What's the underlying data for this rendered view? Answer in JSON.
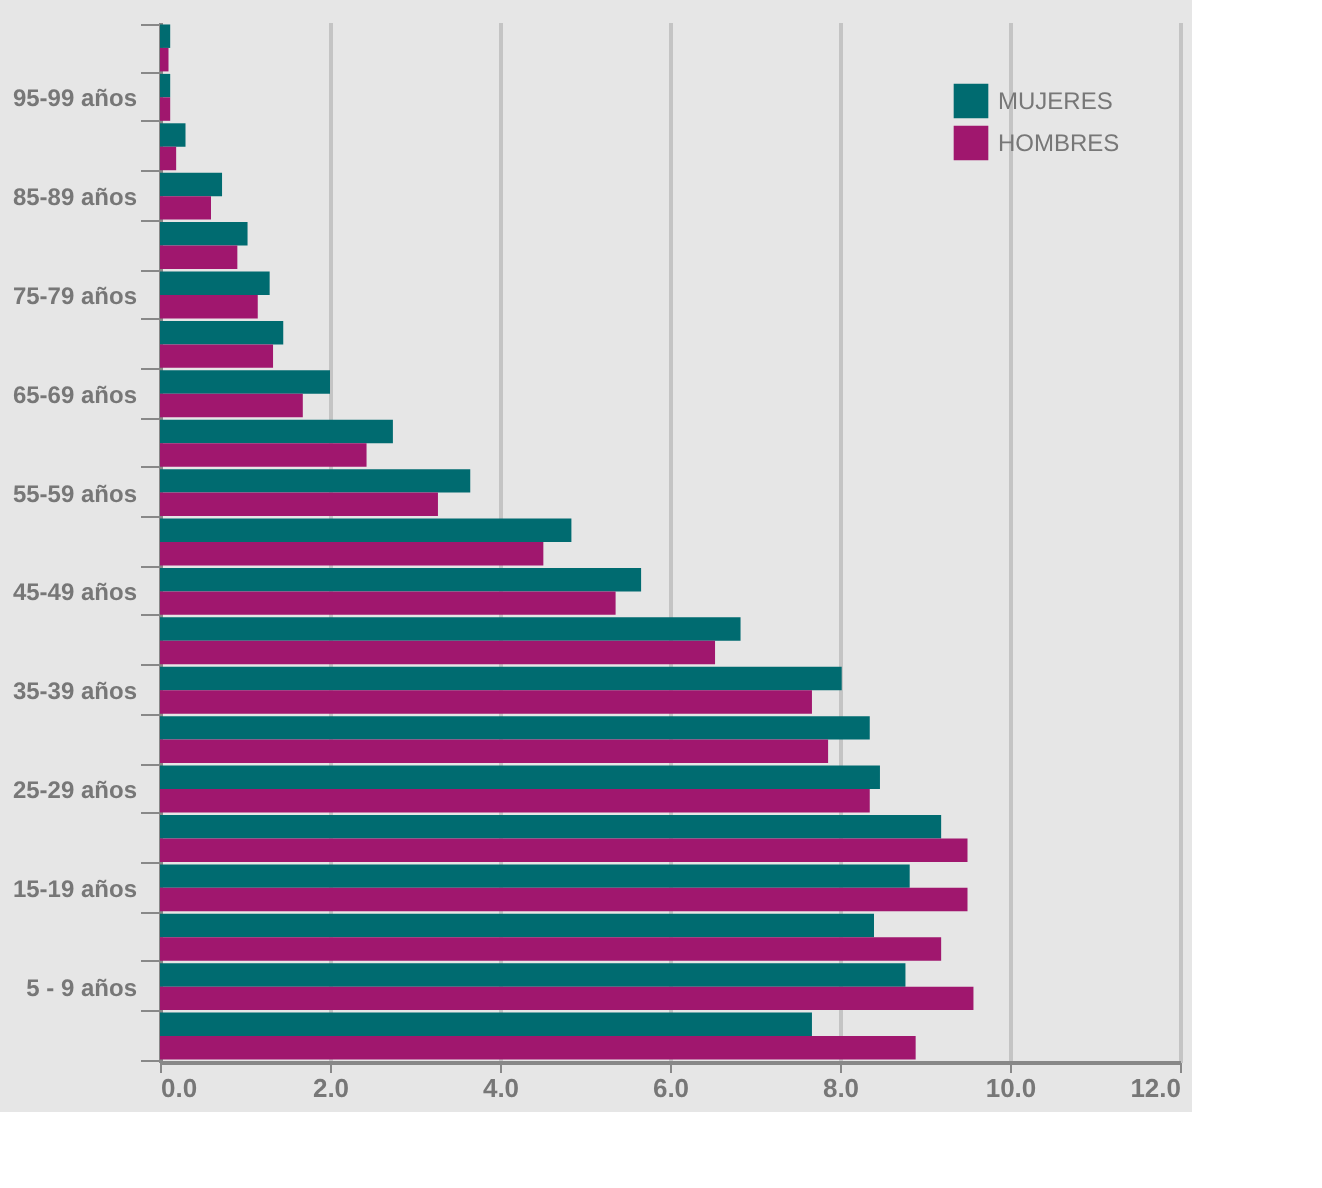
{
  "chart_data": {
    "type": "bar",
    "orientation": "horizontal",
    "categories": [
      null,
      "95-99 años",
      null,
      "85-89 años",
      null,
      "75-79 años",
      null,
      "65-69 años",
      null,
      "55-59 años",
      null,
      "45-49 años",
      null,
      "35-39 años",
      null,
      "25-29 años",
      null,
      "15-19 años",
      null,
      "5 - 9 años",
      null
    ],
    "series": [
      {
        "name": "MUJERES",
        "color": "#006b70",
        "values": [
          0.12,
          0.12,
          0.3,
          0.73,
          1.03,
          1.29,
          1.45,
          2.0,
          2.74,
          3.65,
          4.84,
          5.66,
          6.83,
          8.02,
          8.35,
          8.47,
          9.19,
          8.82,
          8.4,
          8.77,
          7.67
        ]
      },
      {
        "name": "HOMBRES",
        "color": "#a0176e",
        "values": [
          0.1,
          0.12,
          0.19,
          0.6,
          0.91,
          1.15,
          1.33,
          1.68,
          2.43,
          3.27,
          4.51,
          5.36,
          6.53,
          7.67,
          7.86,
          8.35,
          9.5,
          9.5,
          9.19,
          9.57,
          8.89
        ]
      }
    ],
    "xlim": [
      0,
      12
    ],
    "xticks": [
      {
        "value": 0,
        "label": "0.0"
      },
      {
        "value": 2,
        "label": "2.0"
      },
      {
        "value": 4,
        "label": "4.0"
      },
      {
        "value": 6,
        "label": "6.0"
      },
      {
        "value": 8,
        "label": "8.0"
      },
      {
        "value": 10,
        "label": "10.0"
      },
      {
        "value": 12,
        "label": "12.0"
      }
    ],
    "grid": "x",
    "legend": "top right"
  }
}
